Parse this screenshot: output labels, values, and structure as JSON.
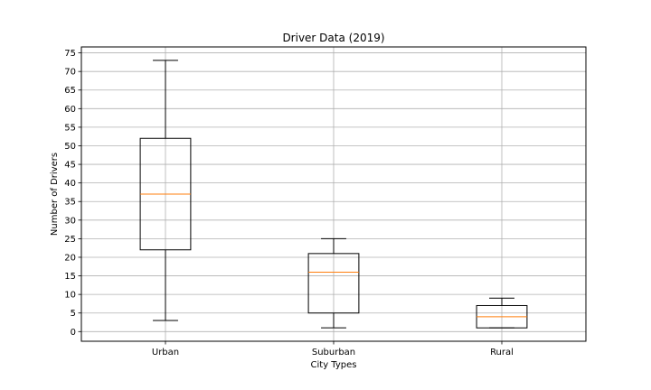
{
  "chart_data": {
    "type": "box",
    "title": "Driver Data (2019)",
    "xlabel": "City Types",
    "ylabel": "Number of Drivers",
    "categories": [
      "Urban",
      "Suburban",
      "Rural"
    ],
    "boxes": [
      {
        "label": "Urban",
        "min": 3,
        "q1": 22,
        "median": 37,
        "q3": 52,
        "max": 73
      },
      {
        "label": "Suburban",
        "min": 1,
        "q1": 5,
        "median": 16,
        "q3": 21,
        "max": 25
      },
      {
        "label": "Rural",
        "min": 1,
        "q1": 1,
        "median": 4,
        "q3": 7,
        "max": 9
      }
    ],
    "ylim": [
      -2.6,
      76.6
    ],
    "yticks": [
      0,
      5,
      10,
      15,
      20,
      25,
      30,
      35,
      40,
      45,
      50,
      55,
      60,
      65,
      70,
      75
    ],
    "grid": true,
    "colors": {
      "box": "#000000",
      "median": "#ff7f0e",
      "grid": "#b0b0b0"
    }
  }
}
